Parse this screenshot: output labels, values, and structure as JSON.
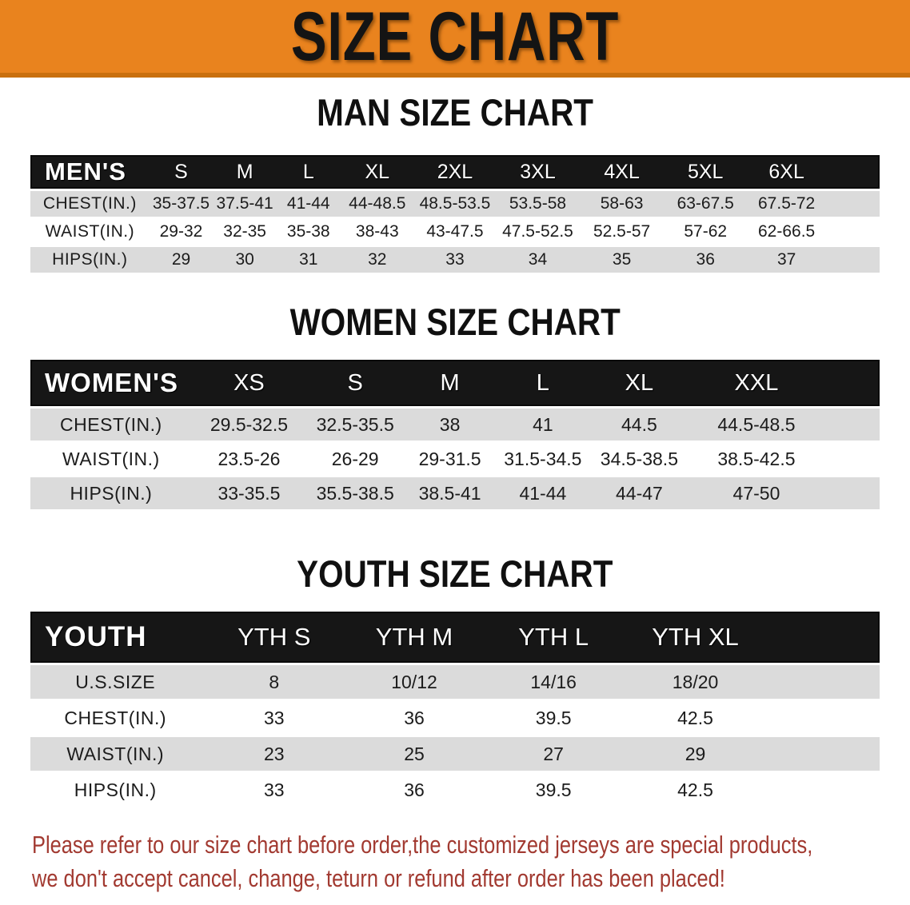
{
  "banner": {
    "title": "SIZE CHART",
    "bg_color": "#E9831E",
    "text_color": "#141414"
  },
  "sections": [
    {
      "heading": "MAN SIZE CHART",
      "table": {
        "label": "MEN'S",
        "sizes": [
          "S",
          "M",
          "L",
          "XL",
          "2XL",
          "3XL",
          "4XL",
          "5XL",
          "6XL"
        ],
        "rows": [
          {
            "label": "CHEST(IN.)",
            "values": [
              "35-37.5",
              "37.5-41",
              "41-44",
              "44-48.5",
              "48.5-53.5",
              "53.5-58",
              "58-63",
              "63-67.5",
              "67.5-72"
            ]
          },
          {
            "label": "WAIST(IN.)",
            "values": [
              "29-32",
              "32-35",
              "35-38",
              "38-43",
              "43-47.5",
              "47.5-52.5",
              "52.5-57",
              "57-62",
              "62-66.5"
            ]
          },
          {
            "label": "HIPS(IN.)",
            "values": [
              "29",
              "30",
              "31",
              "32",
              "33",
              "34",
              "35",
              "36",
              "37"
            ]
          }
        ]
      }
    },
    {
      "heading": "WOMEN SIZE CHART",
      "table": {
        "label": "WOMEN'S",
        "sizes": [
          "XS",
          "S",
          "M",
          "L",
          "XL",
          "XXL"
        ],
        "rows": [
          {
            "label": "CHEST(IN.)",
            "values": [
              "29.5-32.5",
              "32.5-35.5",
              "38",
              "41",
              "44.5",
              "44.5-48.5"
            ]
          },
          {
            "label": "WAIST(IN.)",
            "values": [
              "23.5-26",
              "26-29",
              "29-31.5",
              "31.5-34.5",
              "34.5-38.5",
              "38.5-42.5"
            ]
          },
          {
            "label": "HIPS(IN.)",
            "values": [
              "33-35.5",
              "35.5-38.5",
              "38.5-41",
              "41-44",
              "44-47",
              "47-50"
            ]
          }
        ]
      }
    },
    {
      "heading": "YOUTH SIZE CHART",
      "table": {
        "label": "YOUTH",
        "sizes": [
          "YTH S",
          "YTH M",
          "YTH L",
          "YTH XL"
        ],
        "rows": [
          {
            "label": "U.S.SIZE",
            "values": [
              "8",
              "10/12",
              "14/16",
              "18/20"
            ]
          },
          {
            "label": "CHEST(IN.)",
            "values": [
              "33",
              "36",
              "39.5",
              "42.5"
            ]
          },
          {
            "label": "WAIST(IN.)",
            "values": [
              "23",
              "25",
              "27",
              "29"
            ]
          },
          {
            "label": "HIPS(IN.)",
            "values": [
              "33",
              "36",
              "39.5",
              "42.5"
            ]
          }
        ]
      }
    }
  ],
  "footnote": {
    "color": "#A23A31",
    "lines": [
      "Please refer to our size chart before order,the customized jerseys are special products,",
      "we don't accept cancel, change, teturn or refund after order has been placed!"
    ]
  }
}
